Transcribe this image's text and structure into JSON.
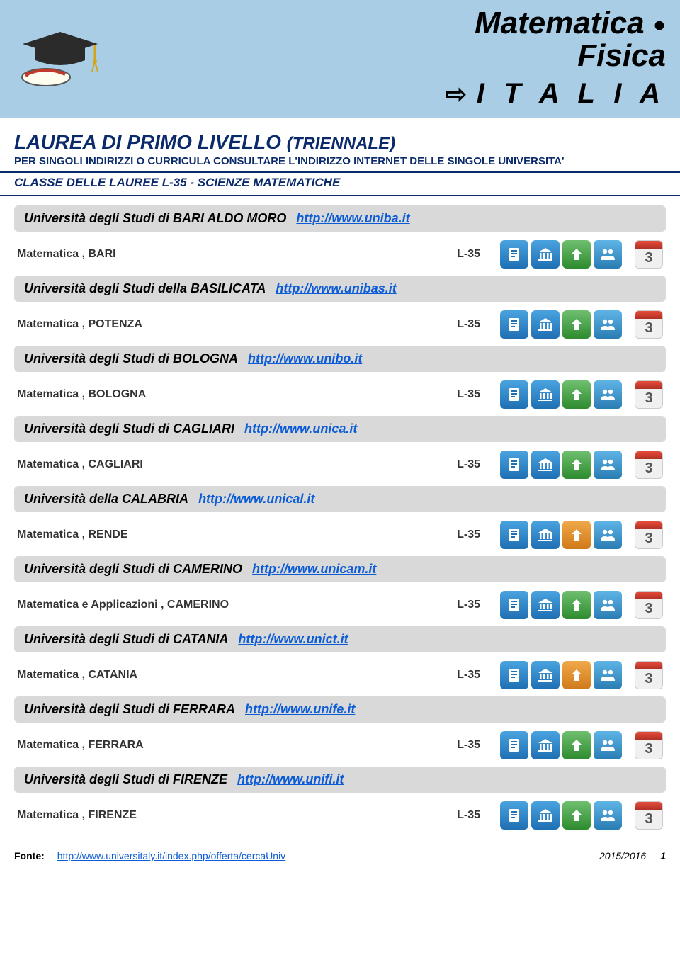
{
  "header": {
    "line1": "Matematica",
    "bullet": "●",
    "line2": "Fisica",
    "arrow": "⇨",
    "line3": "I T A L I A",
    "band_color": "#a8cde5",
    "title_color": "#000000"
  },
  "section": {
    "title": "LAUREA DI PRIMO LIVELLO",
    "title_paren": "(TRIENNALE)",
    "subtitle": "PER SINGOLI INDIRIZZI O CURRICULA CONSULTARE L'INDIRIZZO INTERNET DELLE SINGOLE UNIVERSITA'",
    "class_label": "CLASSE DELLE LAUREE L-35 - SCIENZE MATEMATICHE",
    "heading_color": "#0a2a6b"
  },
  "icon_colors": {
    "blue_gradient": [
      "#4aa3df",
      "#1f6fb3"
    ],
    "green_gradient": [
      "#6fbf6f",
      "#2e8b2e"
    ],
    "orange_gradient": [
      "#f0a84a",
      "#d07a1a"
    ],
    "people_gradient": [
      "#5fb4e6",
      "#2a7db3"
    ],
    "calendar_red": [
      "#e74c3c",
      "#b03024"
    ],
    "calendar_bg": "#f0f0f0"
  },
  "universities": [
    {
      "name": "Università degli Studi di BARI ALDO MORO",
      "url": "http://www.uniba.it",
      "courses": [
        {
          "label": "Matematica , BARI",
          "code": "L-35",
          "calendar": "3",
          "bank_variant": "blue",
          "up_variant": "green"
        }
      ]
    },
    {
      "name": "Università degli Studi della BASILICATA",
      "url": "http://www.unibas.it",
      "courses": [
        {
          "label": "Matematica , POTENZA",
          "code": "L-35",
          "calendar": "3",
          "bank_variant": "blue",
          "up_variant": "green"
        }
      ]
    },
    {
      "name": "Università degli Studi di BOLOGNA",
      "url": "http://www.unibo.it",
      "courses": [
        {
          "label": "Matematica , BOLOGNA",
          "code": "L-35",
          "calendar": "3",
          "bank_variant": "blue",
          "up_variant": "green"
        }
      ]
    },
    {
      "name": "Università degli Studi di CAGLIARI",
      "url": "http://www.unica.it",
      "courses": [
        {
          "label": "Matematica , CAGLIARI",
          "code": "L-35",
          "calendar": "3",
          "bank_variant": "blue",
          "up_variant": "green"
        }
      ]
    },
    {
      "name": "Università della CALABRIA",
      "url": "http://www.unical.it",
      "courses": [
        {
          "label": "Matematica , RENDE",
          "code": "L-35",
          "calendar": "3",
          "bank_variant": "blue",
          "up_variant": "orange"
        }
      ]
    },
    {
      "name": "Università degli Studi di CAMERINO",
      "url": "http://www.unicam.it",
      "courses": [
        {
          "label": "Matematica e Applicazioni , CAMERINO",
          "code": "L-35",
          "calendar": "3",
          "bank_variant": "blue",
          "up_variant": "green"
        }
      ]
    },
    {
      "name": "Università degli Studi di CATANIA",
      "url": "http://www.unict.it",
      "courses": [
        {
          "label": "Matematica , CATANIA",
          "code": "L-35",
          "calendar": "3",
          "bank_variant": "blue",
          "up_variant": "orange"
        }
      ]
    },
    {
      "name": "Università degli Studi di FERRARA",
      "url": "http://www.unife.it",
      "courses": [
        {
          "label": "Matematica , FERRARA",
          "code": "L-35",
          "calendar": "3",
          "bank_variant": "blue",
          "up_variant": "green"
        }
      ]
    },
    {
      "name": "Università degli Studi di FIRENZE",
      "url": "http://www.unifi.it",
      "courses": [
        {
          "label": "Matematica , FIRENZE",
          "code": "L-35",
          "calendar": "3",
          "bank_variant": "blue",
          "up_variant": "green"
        }
      ]
    }
  ],
  "footer": {
    "source_label": "Fonte:",
    "source_url": "http://www.universitaly.it/index.php/offerta/cercaUniv",
    "year": "2015/2016",
    "page_num": "1"
  }
}
